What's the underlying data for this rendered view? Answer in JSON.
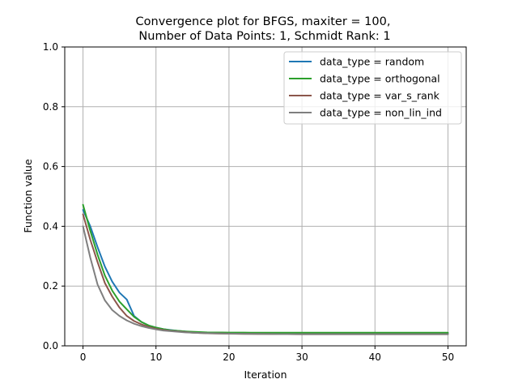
{
  "chart_data": {
    "type": "line",
    "title_line1": "Convergence plot for BFGS, maxiter = 100,",
    "title_line2": "Number of Data Points: 1, Schmidt Rank: 1",
    "xlabel": "Iteration",
    "ylabel": "Function value",
    "xlim": [
      -2.5,
      52.5
    ],
    "ylim": [
      0.0,
      1.0
    ],
    "xticks": [
      0,
      10,
      20,
      30,
      40,
      50
    ],
    "xtick_labels": [
      "0",
      "10",
      "20",
      "30",
      "40",
      "50"
    ],
    "yticks": [
      0.0,
      0.2,
      0.4,
      0.6,
      0.8,
      1.0
    ],
    "ytick_labels": [
      "0.0",
      "0.2",
      "0.4",
      "0.6",
      "0.8",
      "1.0"
    ],
    "grid": true,
    "legend_position": "top-right",
    "x": [
      0,
      1,
      2,
      3,
      4,
      5,
      6,
      7,
      8,
      9,
      10,
      11,
      12,
      13,
      14,
      15,
      16,
      17,
      18,
      19,
      20,
      21,
      22,
      23,
      24,
      25,
      26,
      27,
      28,
      29,
      30,
      31,
      32,
      33,
      34,
      35,
      36,
      37,
      38,
      39,
      40,
      41,
      42,
      43,
      44,
      45,
      46,
      47,
      48,
      49,
      50
    ],
    "series": [
      {
        "name": "data_type = random",
        "color": "#1f77b4",
        "values": [
          0.455,
          0.4,
          0.33,
          0.265,
          0.215,
          0.178,
          0.155,
          0.1,
          0.08,
          0.068,
          0.061,
          0.056,
          0.053,
          0.05,
          0.048,
          0.046,
          0.045,
          0.044,
          0.0435,
          0.043,
          0.0428,
          0.0426,
          0.0424,
          0.0422,
          0.042,
          0.0419,
          0.0418,
          0.0417,
          0.0416,
          0.0415,
          0.0414,
          0.0413,
          0.0412,
          0.0411,
          0.041,
          0.041,
          0.041,
          0.041,
          0.041,
          0.041,
          0.041,
          0.041,
          0.041,
          0.041,
          0.041,
          0.041,
          0.041,
          0.041,
          0.041,
          0.041,
          0.041
        ]
      },
      {
        "name": "data_type = orthogonal",
        "color": "#2ca02c",
        "values": [
          0.472,
          0.385,
          0.305,
          0.235,
          0.185,
          0.148,
          0.122,
          0.097,
          0.08,
          0.068,
          0.061,
          0.056,
          0.052,
          0.05,
          0.048,
          0.047,
          0.046,
          0.045,
          0.0448,
          0.0446,
          0.0445,
          0.0444,
          0.0443,
          0.0442,
          0.0441,
          0.044,
          0.044,
          0.044,
          0.044,
          0.044,
          0.044,
          0.044,
          0.044,
          0.044,
          0.044,
          0.044,
          0.044,
          0.044,
          0.044,
          0.044,
          0.044,
          0.044,
          0.044,
          0.044,
          0.044,
          0.044,
          0.044,
          0.044,
          0.044,
          0.044,
          0.044
        ]
      },
      {
        "name": "data_type = var_s_rank",
        "color": "#8c564b",
        "values": [
          0.44,
          0.355,
          0.28,
          0.21,
          0.165,
          0.128,
          0.1,
          0.083,
          0.072,
          0.063,
          0.057,
          0.053,
          0.05,
          0.048,
          0.046,
          0.044,
          0.043,
          0.042,
          0.0415,
          0.041,
          0.0405,
          0.0402,
          0.04,
          0.0398,
          0.0396,
          0.0395,
          0.0394,
          0.0393,
          0.0392,
          0.0391,
          0.039,
          0.039,
          0.039,
          0.039,
          0.039,
          0.039,
          0.039,
          0.039,
          0.039,
          0.039,
          0.039,
          0.039,
          0.039,
          0.039,
          0.039,
          0.039,
          0.039,
          0.039,
          0.039,
          0.039,
          0.039
        ]
      },
      {
        "name": "data_type = non_lin_ind",
        "color": "#7f7f7f",
        "values": [
          0.4,
          0.295,
          0.205,
          0.152,
          0.12,
          0.1,
          0.085,
          0.074,
          0.066,
          0.06,
          0.055,
          0.051,
          0.049,
          0.047,
          0.045,
          0.044,
          0.043,
          0.0425,
          0.042,
          0.0415,
          0.041,
          0.0405,
          0.0402,
          0.04,
          0.0398,
          0.0396,
          0.0395,
          0.0394,
          0.0393,
          0.0392,
          0.0391,
          0.039,
          0.039,
          0.039,
          0.039,
          0.039,
          0.039,
          0.039,
          0.039,
          0.039,
          0.039,
          0.039,
          0.039,
          0.039,
          0.039,
          0.039,
          0.039,
          0.039,
          0.039,
          0.039,
          0.039
        ]
      }
    ]
  }
}
